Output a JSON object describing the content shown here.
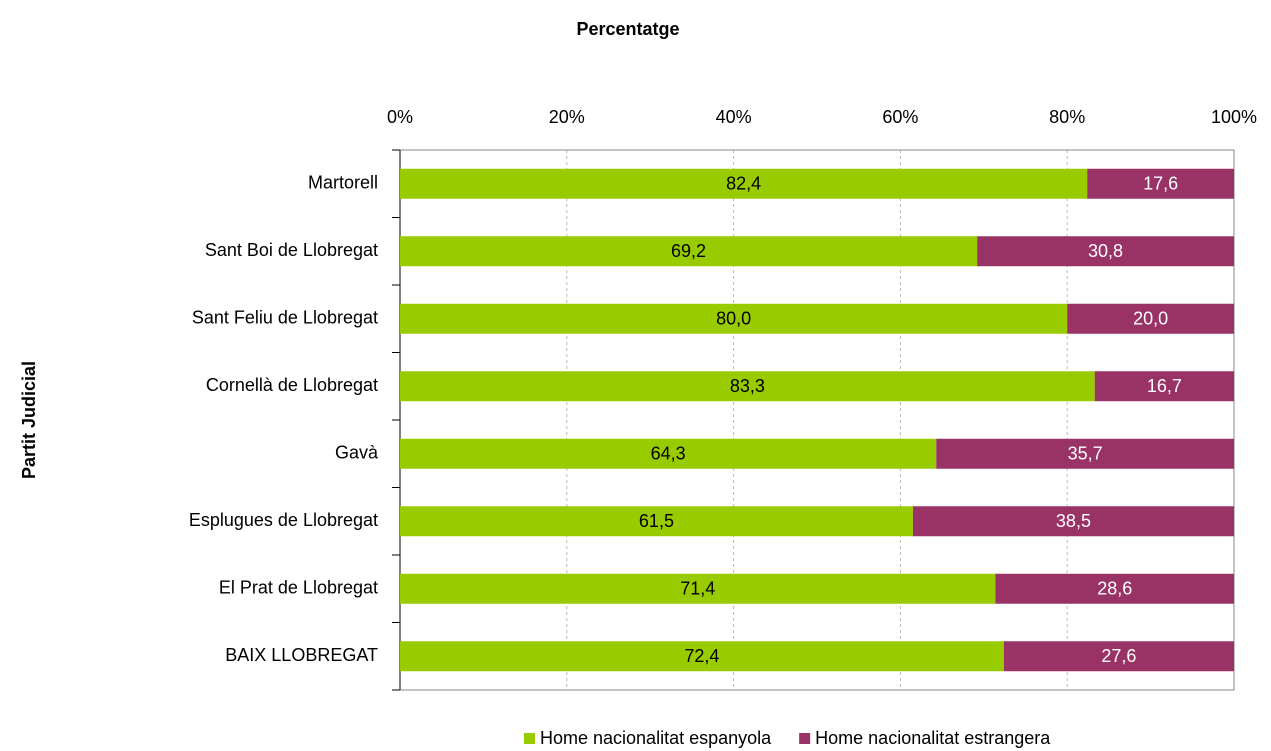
{
  "chart_data": {
    "type": "stacked_barh",
    "title": "Percentatge",
    "ylabel": "Partit Judicial",
    "categories": [
      "Martorell",
      "Sant Boi de Llobregat",
      "Sant Feliu de Llobregat",
      "Cornellà de Llobregat",
      "Gavà",
      "Esplugues de Llobregat",
      "El Prat de Llobregat",
      "BAIX LLOBREGAT"
    ],
    "series": [
      {
        "name": "Home nacionalitat espanyola",
        "color": "#99cc00",
        "values": [
          82.4,
          69.2,
          80.0,
          83.3,
          64.3,
          61.5,
          71.4,
          72.4
        ],
        "value_labels": [
          "82,4",
          "69,2",
          "80,0",
          "83,3",
          "64,3",
          "61,5",
          "71,4",
          "72,4"
        ]
      },
      {
        "name": "Home nacionalitat estrangera",
        "color": "#993366",
        "values": [
          17.6,
          30.8,
          20.0,
          16.7,
          35.7,
          38.5,
          28.6,
          27.6
        ],
        "value_labels": [
          "17,6",
          "30,8",
          "20,0",
          "16,7",
          "35,7",
          "38,5",
          "28,6",
          "27,6"
        ]
      }
    ],
    "xlim": [
      0,
      100
    ],
    "xticks": [
      {
        "value": 0,
        "label": "0%"
      },
      {
        "value": 20,
        "label": "20%"
      },
      {
        "value": 40,
        "label": "40%"
      },
      {
        "value": 60,
        "label": "60%"
      },
      {
        "value": 80,
        "label": "80%"
      },
      {
        "value": 100,
        "label": "100%"
      }
    ],
    "grid": true,
    "legend": "bottom"
  }
}
